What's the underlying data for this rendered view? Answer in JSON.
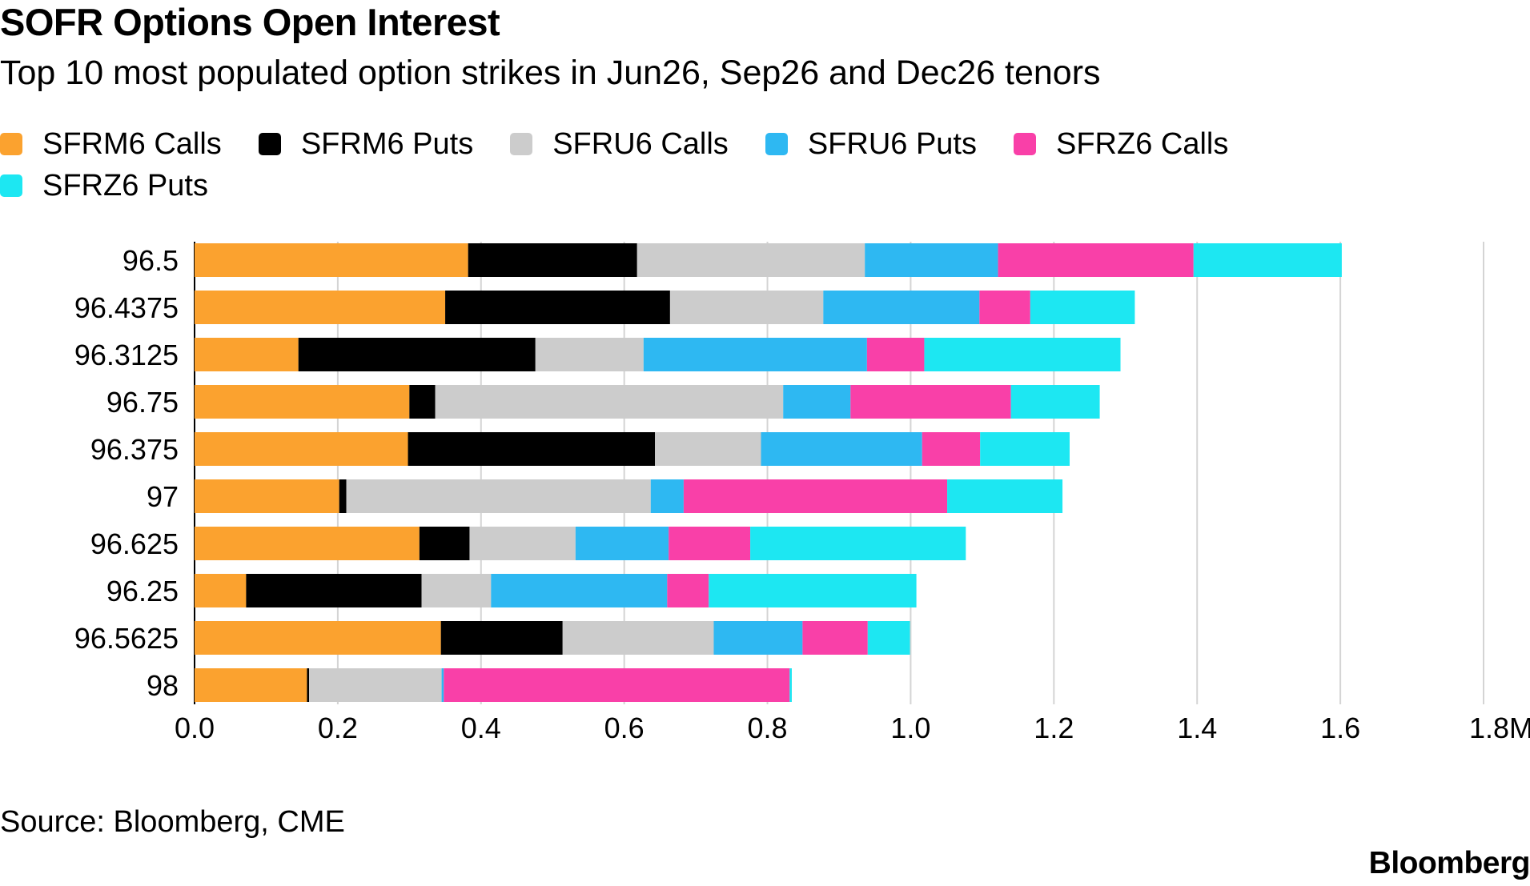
{
  "header": {
    "title": "SOFR Options Open Interest",
    "subtitle": "Top 10 most populated option strikes in Jun26, Sep26 and Dec26 tenors"
  },
  "footer": {
    "source": "Source: Bloomberg, CME",
    "brand": "Bloomberg"
  },
  "chart_data": {
    "type": "bar",
    "orientation": "horizontal",
    "stacked": true,
    "title": "SOFR Options Open Interest",
    "subtitle": "Top 10 most populated option strikes in Jun26, Sep26 and Dec26 tenors",
    "xlabel": "",
    "ylabel": "",
    "xlim": [
      0,
      1.8
    ],
    "x_unit": "M",
    "x_ticks": [
      "0.0",
      "0.2",
      "0.4",
      "0.6",
      "0.8",
      "1.0",
      "1.2",
      "1.4",
      "1.6",
      "1.8M"
    ],
    "grid": true,
    "legend_position": "top",
    "categories": [
      "96.5",
      "96.4375",
      "96.3125",
      "96.75",
      "96.375",
      "97",
      "96.625",
      "96.25",
      "96.5625",
      "98"
    ],
    "series": [
      {
        "name": "SFRM6 Calls",
        "color": "#FBA22F",
        "values": [
          0.382,
          0.35,
          0.145,
          0.3,
          0.298,
          0.202,
          0.314,
          0.072,
          0.344,
          0.157
        ]
      },
      {
        "name": "SFRM6 Puts",
        "color": "#000000",
        "values": [
          0.236,
          0.314,
          0.331,
          0.036,
          0.345,
          0.01,
          0.07,
          0.245,
          0.17,
          0.003
        ]
      },
      {
        "name": "SFRU6 Calls",
        "color": "#CCCCCC",
        "values": [
          0.318,
          0.214,
          0.151,
          0.486,
          0.148,
          0.425,
          0.148,
          0.097,
          0.211,
          0.185
        ]
      },
      {
        "name": "SFRU6 Puts",
        "color": "#2EB8F2",
        "values": [
          0.186,
          0.218,
          0.312,
          0.094,
          0.225,
          0.046,
          0.13,
          0.246,
          0.124,
          0.003
        ]
      },
      {
        "name": "SFRZ6 Calls",
        "color": "#F940A8",
        "values": [
          0.273,
          0.071,
          0.08,
          0.224,
          0.081,
          0.368,
          0.114,
          0.058,
          0.091,
          0.483
        ]
      },
      {
        "name": "SFRZ6 Puts",
        "color": "#1DE7F2",
        "values": [
          0.207,
          0.146,
          0.274,
          0.124,
          0.125,
          0.161,
          0.301,
          0.29,
          0.059,
          0.003
        ]
      }
    ]
  }
}
